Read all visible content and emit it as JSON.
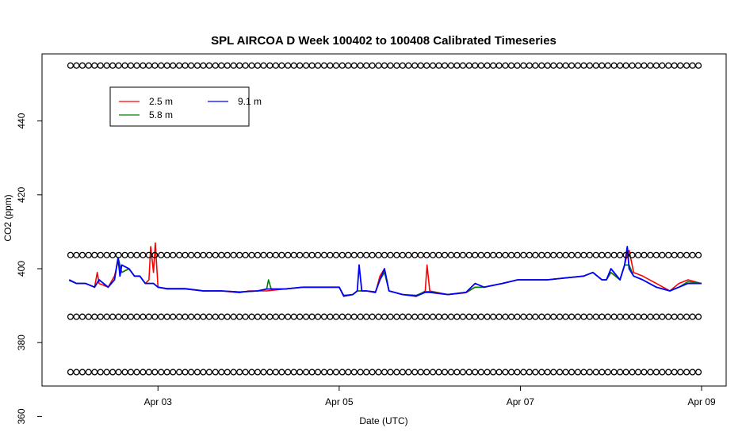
{
  "chart_data": {
    "type": "line",
    "title": "SPL AIRCOA D  Week 100402 to 100408  Calibrated Timeseries",
    "xlabel": "Date (UTC)",
    "ylabel": "CO2 (ppm)",
    "xlim": [
      2.0,
      9.0
    ],
    "ylim": [
      366,
      458
    ],
    "x_ticks": [
      {
        "value": 3,
        "label": "Apr 03"
      },
      {
        "value": 5,
        "label": "Apr 05"
      },
      {
        "value": 7,
        "label": "Apr 07"
      },
      {
        "value": 9,
        "label": "Apr 09"
      }
    ],
    "y_ticks": [
      360,
      380,
      400,
      420,
      440
    ],
    "grid": false,
    "legend": {
      "position": "top-left",
      "entries": [
        {
          "label": "2.5 m",
          "color": "#ff0000"
        },
        {
          "label": "9.1 m",
          "color": "#0000ff"
        },
        {
          "label": "5.8 m",
          "color": "#008000"
        }
      ]
    },
    "series": [
      {
        "name": "2.5 m",
        "color": "#ff0000",
        "x": [
          2.02,
          2.1,
          2.2,
          2.3,
          2.33,
          2.35,
          2.45,
          2.52,
          2.56,
          2.6,
          2.68,
          2.74,
          2.8,
          2.86,
          2.9,
          2.92,
          2.95,
          2.97,
          3.0,
          3.1,
          3.3,
          3.5,
          3.7,
          3.9,
          4.0,
          4.2,
          4.4,
          4.6,
          4.8,
          5.0,
          5.05,
          5.15,
          5.2,
          5.3,
          5.4,
          5.45,
          5.5,
          5.55,
          5.7,
          5.85,
          5.95,
          5.97,
          6.0,
          6.2,
          6.4,
          6.5,
          6.6,
          6.8,
          6.97,
          7.1,
          7.3,
          7.5,
          7.7,
          7.8,
          7.9,
          7.95,
          8.0,
          8.1,
          8.15,
          8.18,
          8.2,
          8.25,
          8.35,
          8.5,
          8.65,
          8.75,
          8.85,
          9.0
        ],
        "y": [
          397,
          396,
          396,
          395,
          399,
          396,
          395,
          398,
          402,
          399,
          400,
          398,
          398,
          396,
          397,
          406,
          399,
          407,
          395,
          394.5,
          394.5,
          394,
          394,
          393.5,
          394,
          394,
          394.5,
          395,
          395,
          395,
          392.5,
          393,
          394,
          394,
          393.5,
          398,
          400,
          394,
          393,
          392.5,
          394,
          401,
          394,
          393,
          393.5,
          395,
          395,
          396,
          397,
          397,
          397,
          397.5,
          398,
          399,
          397,
          397,
          399,
          397,
          401,
          404,
          405,
          399,
          398,
          396,
          394,
          396,
          397,
          396
        ]
      },
      {
        "name": "5.8 m",
        "color": "#008000",
        "x": [
          2.02,
          2.1,
          2.2,
          2.3,
          2.35,
          2.45,
          2.52,
          2.56,
          2.6,
          2.68,
          2.74,
          2.8,
          2.86,
          2.95,
          3.0,
          3.1,
          3.3,
          3.5,
          3.7,
          3.9,
          4.1,
          4.2,
          4.22,
          4.25,
          4.4,
          4.6,
          4.8,
          5.0,
          5.05,
          5.15,
          5.2,
          5.3,
          5.4,
          5.45,
          5.5,
          5.55,
          5.7,
          5.85,
          5.95,
          6.0,
          6.2,
          6.4,
          6.5,
          6.6,
          6.8,
          6.97,
          7.1,
          7.3,
          7.5,
          7.7,
          7.8,
          7.9,
          7.95,
          8.0,
          8.1,
          8.15,
          8.2,
          8.25,
          8.35,
          8.5,
          8.65,
          8.75,
          8.85,
          9.0
        ],
        "y": [
          396.8,
          396,
          396,
          395,
          397,
          395,
          397,
          403,
          399,
          400,
          398,
          398,
          396,
          396,
          395,
          394.6,
          394.6,
          394,
          394,
          393.7,
          394,
          394.5,
          397,
          394.5,
          394.5,
          395,
          395,
          395,
          392.8,
          393,
          394,
          394,
          393.7,
          397,
          399,
          394,
          393,
          392.8,
          393.8,
          393.8,
          393,
          393.6,
          395,
          395,
          396,
          397,
          397,
          397,
          397.5,
          398,
          399,
          397,
          397,
          399,
          397,
          401,
          401,
          398,
          397,
          395,
          394,
          395,
          396.5,
          396
        ]
      },
      {
        "name": "9.1 m",
        "color": "#0000ff",
        "x": [
          2.02,
          2.1,
          2.2,
          2.3,
          2.35,
          2.45,
          2.52,
          2.56,
          2.58,
          2.6,
          2.68,
          2.74,
          2.8,
          2.86,
          2.95,
          3.0,
          3.1,
          3.3,
          3.5,
          3.7,
          3.9,
          4.1,
          4.2,
          4.4,
          4.6,
          4.8,
          5.0,
          5.05,
          5.15,
          5.2,
          5.22,
          5.25,
          5.3,
          5.4,
          5.45,
          5.5,
          5.55,
          5.7,
          5.85,
          5.95,
          6.0,
          6.2,
          6.4,
          6.5,
          6.6,
          6.8,
          6.97,
          7.1,
          7.3,
          7.5,
          7.7,
          7.8,
          7.9,
          7.95,
          8.0,
          8.1,
          8.15,
          8.18,
          8.2,
          8.25,
          8.35,
          8.5,
          8.65,
          8.75,
          8.85,
          9.0
        ],
        "y": [
          397,
          396,
          396,
          395,
          397,
          395,
          397,
          403,
          398,
          401,
          400,
          398,
          398,
          396,
          396,
          395,
          394.6,
          394.6,
          394,
          394,
          393.7,
          394,
          394.5,
          394.5,
          395,
          395,
          395,
          392.6,
          393,
          394,
          401,
          394,
          394,
          393.7,
          397,
          400,
          394,
          393,
          392.6,
          393.6,
          393.6,
          393,
          393.6,
          396,
          395,
          396,
          397,
          397,
          397,
          397.5,
          398,
          399,
          397,
          397,
          400,
          397,
          401,
          406,
          400,
          398,
          397,
          395,
          394,
          395,
          396,
          396
        ]
      },
      {
        "name": "",
        "color": "#000000",
        "markers": true,
        "x": [
          2.1,
          2.3,
          2.5,
          2.7,
          2.9,
          3.1,
          3.3,
          3.5,
          3.7,
          3.9,
          4.1,
          4.3,
          4.5,
          4.7,
          4.9,
          5.1,
          5.3,
          5.5,
          5.7,
          5.9,
          6.1,
          6.3,
          6.5,
          6.7,
          6.9,
          7.1,
          7.3,
          7.5,
          7.7,
          7.9,
          8.1,
          8.3,
          8.5,
          8.7,
          8.9
        ],
        "y": [
          455,
          455,
          455,
          455,
          455,
          455,
          455,
          455,
          455,
          455,
          455,
          455,
          455,
          455,
          455,
          455,
          455,
          455,
          455,
          455,
          455,
          455,
          455,
          455,
          455,
          455,
          455,
          455,
          455,
          455,
          455,
          455,
          455,
          455,
          455
        ]
      },
      {
        "name": "",
        "color": "#000000",
        "markers": true,
        "x": [
          2.1,
          2.3,
          2.5,
          2.7,
          2.9,
          3.1,
          3.3,
          3.5,
          3.7,
          3.9,
          4.1,
          4.3,
          4.5,
          4.7,
          4.9,
          5.1,
          5.3,
          5.5,
          5.7,
          5.9,
          6.1,
          6.3,
          6.5,
          6.7,
          6.9,
          7.1,
          7.3,
          7.5,
          7.7,
          7.9,
          8.1,
          8.3,
          8.5,
          8.7,
          8.9
        ],
        "y": [
          403.7,
          403.7,
          403.7,
          403.7,
          403.7,
          403.7,
          403.7,
          403.7,
          403.7,
          403.7,
          403.7,
          403.7,
          403.7,
          403.7,
          403.7,
          403.7,
          403.7,
          403.7,
          403.7,
          403.7,
          403.7,
          403.7,
          403.7,
          403.7,
          403.7,
          403.7,
          403.7,
          403.7,
          403.7,
          403.7,
          403.7,
          403.7,
          403.7,
          403.7,
          403.7
        ]
      },
      {
        "name": "",
        "color": "#000000",
        "markers": true,
        "x": [
          2.1,
          2.3,
          2.5,
          2.7,
          2.9,
          3.1,
          3.3,
          3.5,
          3.7,
          3.9,
          4.1,
          4.3,
          4.5,
          4.7,
          4.9,
          5.1,
          5.3,
          5.5,
          5.7,
          5.9,
          6.1,
          6.3,
          6.5,
          6.7,
          6.9,
          7.1,
          7.3,
          7.5,
          7.7,
          7.9,
          8.1,
          8.3,
          8.5,
          8.7,
          8.9
        ],
        "y": [
          387,
          387,
          387,
          387,
          387,
          387,
          387,
          387,
          387,
          387,
          387,
          387,
          387,
          387,
          387,
          387,
          387,
          387,
          387,
          387,
          387,
          387,
          387,
          387,
          387,
          387,
          387,
          387,
          387,
          387,
          387,
          387,
          387,
          387,
          387
        ]
      },
      {
        "name": "",
        "color": "#000000",
        "markers": true,
        "x": [
          2.1,
          2.3,
          2.5,
          2.7,
          2.9,
          3.1,
          3.3,
          3.5,
          3.7,
          3.9,
          4.1,
          4.3,
          4.5,
          4.7,
          4.9,
          5.1,
          5.3,
          5.5,
          5.7,
          5.9,
          6.1,
          6.3,
          6.5,
          6.7,
          6.9,
          7.1,
          7.3,
          7.5,
          7.7,
          7.9,
          8.1,
          8.3,
          8.5,
          8.7,
          8.9
        ],
        "y": [
          372,
          372,
          372,
          372,
          372,
          372,
          372,
          372,
          372,
          372,
          372,
          372,
          372,
          372,
          372,
          372,
          372,
          372,
          372,
          372,
          372,
          372,
          372,
          372,
          372,
          372,
          372,
          372,
          372,
          372,
          372,
          372,
          372,
          372,
          372
        ]
      }
    ]
  }
}
